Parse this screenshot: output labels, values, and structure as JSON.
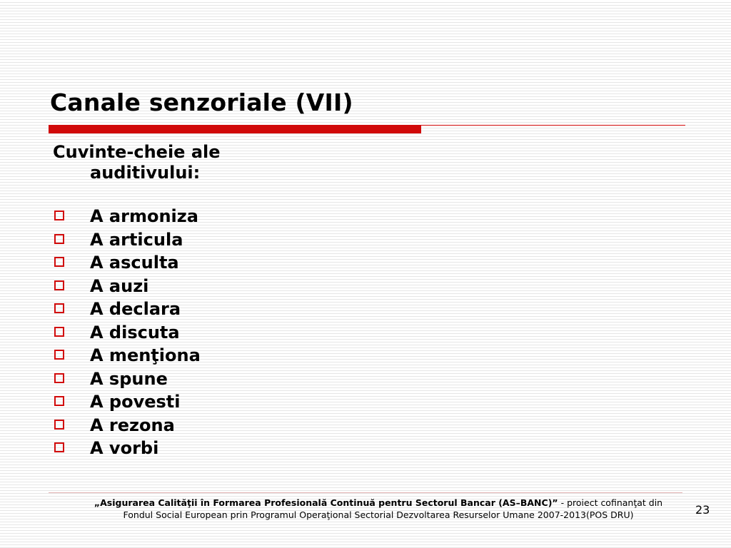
{
  "slide": {
    "title": "Canale senzoriale (VII)",
    "intro_line1": "Cuvinte-cheie ale",
    "intro_line2": "auditivului:",
    "items": [
      "A armoniza",
      "A articula",
      "A asculta",
      "A auzi",
      "A declara",
      "A discuta",
      "A menţiona",
      "A spune",
      "A povesti",
      "A rezona",
      "A vorbi"
    ],
    "bullet_icon": "square-outline-icon",
    "accent_color": "#d10a0a"
  },
  "footer": {
    "project_name": "„Asigurarea Calităţii în Formarea Profesională Continuă pentru Sectorul Bancar (AS–BANC)”",
    "project_suffix": " - proiect cofinanţat din",
    "line2": "Fondul Social European prin Programul Operaţional Sectorial Dezvoltarea Resurselor Umane 2007-2013(POS DRU)",
    "page_number": "23"
  }
}
